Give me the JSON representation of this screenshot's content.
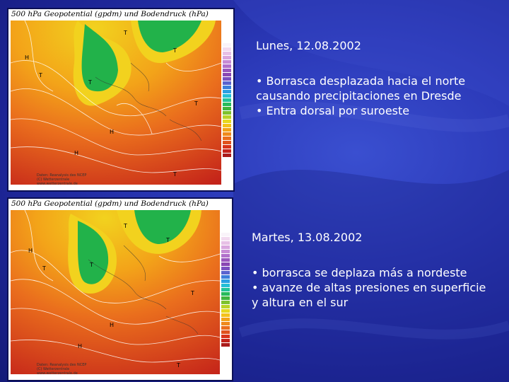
{
  "slide1": {
    "map_title": "500 hPa Geopotential (gpdm) und Bodendruck (hPa)",
    "credit_lines": [
      "Daten: Reanalysis des NCEP",
      "(C) Wetterzentrale",
      "www.wetterzentrale.de"
    ],
    "date": "Lunes, 12.08.2002",
    "bullets": [
      "• Borrasca desplazada hacia el norte causando precipitaciones en Dresde",
      "• Entra dorsal por suroeste"
    ]
  },
  "slide2": {
    "map_title": "500 hPa Geopotential (gpdm) und Bodendruck (hPa)",
    "credit_lines": [
      "Daten: Reanalysis des NCEP",
      "(C) Wetterzentrale",
      "www.wetterzentrale.de"
    ],
    "date": "Martes, 13.08.2002",
    "bullets": [
      "•  borrasca se deplaza más a nordeste",
      "•  avanze de altas presiones en superficie y altura en el sur"
    ]
  },
  "colors": {
    "background": "#2b39b8",
    "text": "#ffffff",
    "map_green": "#22b24a",
    "map_yellow": "#f2d21e",
    "map_orange": "#ef8a1c",
    "map_red": "#d8341a"
  },
  "scale_colors": [
    "#f9f3f9",
    "#f2d9ef",
    "#e7c0e6",
    "#d9a6de",
    "#c78bd5",
    "#b170cb",
    "#9a57bd",
    "#8a47b3",
    "#7b4fc0",
    "#5a63cf",
    "#3c7fdb",
    "#2aa0e3",
    "#24bfd7",
    "#22c49a",
    "#27bb5c",
    "#3fb53d",
    "#7dc22d",
    "#b9d326",
    "#e7d81f",
    "#f4c21b",
    "#f3a319",
    "#ef8a1c",
    "#ea6e1d",
    "#e0531d",
    "#d8341a",
    "#c4231a",
    "#aa1b1a"
  ]
}
